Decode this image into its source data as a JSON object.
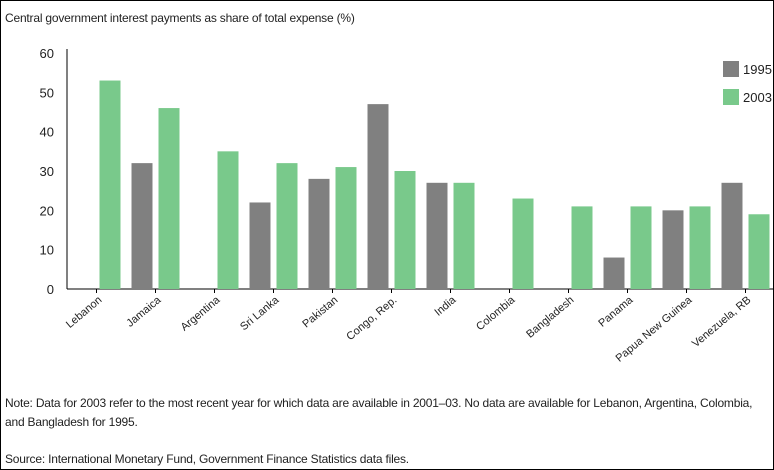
{
  "chart_data": {
    "type": "bar",
    "title": "Central government interest payments as share of total expense (%)",
    "categories": [
      "Lebanon",
      "Jamaica",
      "Argentina",
      "Sri Lanka",
      "Pakistan",
      "Congo, Rep.",
      "India",
      "Colombia",
      "Bangladesh",
      "Panama",
      "Papua New Guinea",
      "Venezuela, RB"
    ],
    "series": [
      {
        "name": "1995",
        "color": "#808080",
        "values": [
          null,
          32,
          null,
          22,
          28,
          47,
          27,
          null,
          null,
          8,
          20,
          27
        ]
      },
      {
        "name": "2003",
        "color": "#79c98b",
        "values": [
          53,
          46,
          35,
          32,
          31,
          30,
          27,
          23,
          21,
          21,
          21,
          19
        ]
      }
    ],
    "ylim": [
      0,
      60
    ],
    "yticks": [
      0,
      10,
      20,
      30,
      40,
      50,
      60
    ],
    "grid": false,
    "legend": "top-right",
    "xlabel": "",
    "ylabel": ""
  },
  "note": "Note: Data for 2003 refer to the most recent year for which data are available in 2001–03. No data are available for Lebanon, Argentina, Colombia, and Bangladesh for 1995.",
  "source": "Source: International Monetary Fund, Government Finance Statistics data files."
}
